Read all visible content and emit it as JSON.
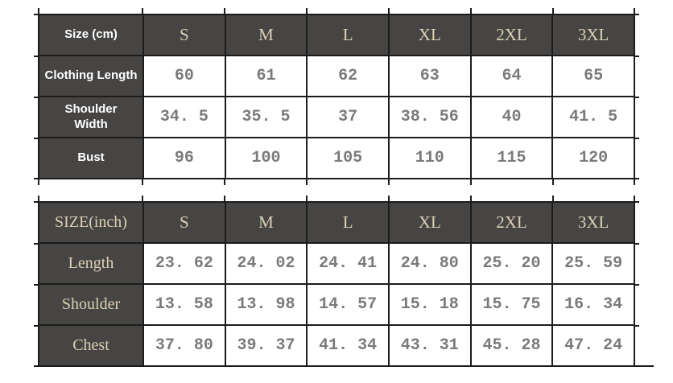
{
  "theme": {
    "header_bg": "#474543",
    "accent_text": "#d9d0b5",
    "label_text": "#ffffff",
    "value_text": "#7a7a7a",
    "grid_border": "#1c1c1c",
    "background": "#ffffff"
  },
  "chart_data": [
    {
      "type": "table",
      "header": [
        "Size (cm)",
        "S",
        "M",
        "L",
        "XL",
        "2XL",
        "3XL"
      ],
      "rows": [
        {
          "label": "Clothing Length",
          "values": [
            "60",
            "61",
            "62",
            "63",
            "64",
            "65"
          ]
        },
        {
          "label": "Shoulder\nWidth",
          "values": [
            "34. 5",
            "35. 5",
            "37",
            "38. 56",
            "40",
            "41. 5"
          ]
        },
        {
          "label": "Bust",
          "values": [
            "96",
            "100",
            "105",
            "110",
            "115",
            "120"
          ]
        }
      ]
    },
    {
      "type": "table",
      "header": [
        "SIZE(inch)",
        "S",
        "M",
        "L",
        "XL",
        "2XL",
        "3XL"
      ],
      "rows": [
        {
          "label": "Length",
          "values": [
            "23. 62",
            "24. 02",
            "24. 41",
            "24. 80",
            "25. 20",
            "25. 59"
          ]
        },
        {
          "label": "Shoulder",
          "values": [
            "13. 58",
            "13. 98",
            "14. 57",
            "15. 18",
            "15. 75",
            "16. 34"
          ]
        },
        {
          "label": "Chest",
          "values": [
            "37. 80",
            "39. 37",
            "41. 34",
            "43. 31",
            "45. 28",
            "47. 24"
          ]
        }
      ]
    }
  ]
}
